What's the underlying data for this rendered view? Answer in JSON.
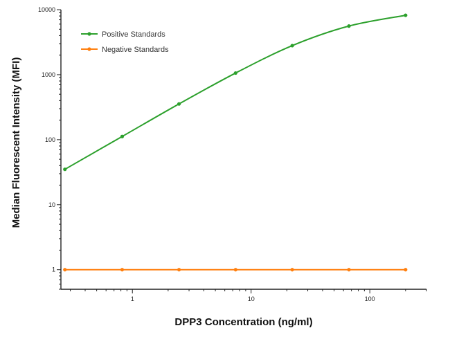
{
  "chart_data": {
    "type": "line",
    "title": "",
    "xlabel": "DPP3 Concentration (ng/ml)",
    "ylabel": "Median  Fluorescent Intensity  (MFI)",
    "xscale": "log",
    "yscale": "log",
    "xlim": [
      0.25,
      300
    ],
    "ylim": [
      0.5,
      10000
    ],
    "x_ticks": [
      1,
      10,
      100
    ],
    "x_tick_labels": [
      "1",
      "10",
      "100"
    ],
    "y_ticks": [
      1,
      10,
      100,
      1000,
      10000
    ],
    "y_tick_labels": [
      "1",
      "10",
      "100",
      "1000",
      "10000"
    ],
    "grid": false,
    "legend_position": "top-left",
    "x": [
      0.27,
      0.82,
      2.47,
      7.4,
      22.2,
      66.7,
      200
    ],
    "series": [
      {
        "name": "Positive Standards",
        "color": "#2ca02c",
        "values": [
          35,
          112,
          355,
          1060,
          2800,
          5600,
          8200
        ]
      },
      {
        "name": "Negative Standards",
        "color": "#ff7f0e",
        "values": [
          1,
          1,
          1,
          1,
          1,
          1,
          1
        ]
      }
    ]
  }
}
